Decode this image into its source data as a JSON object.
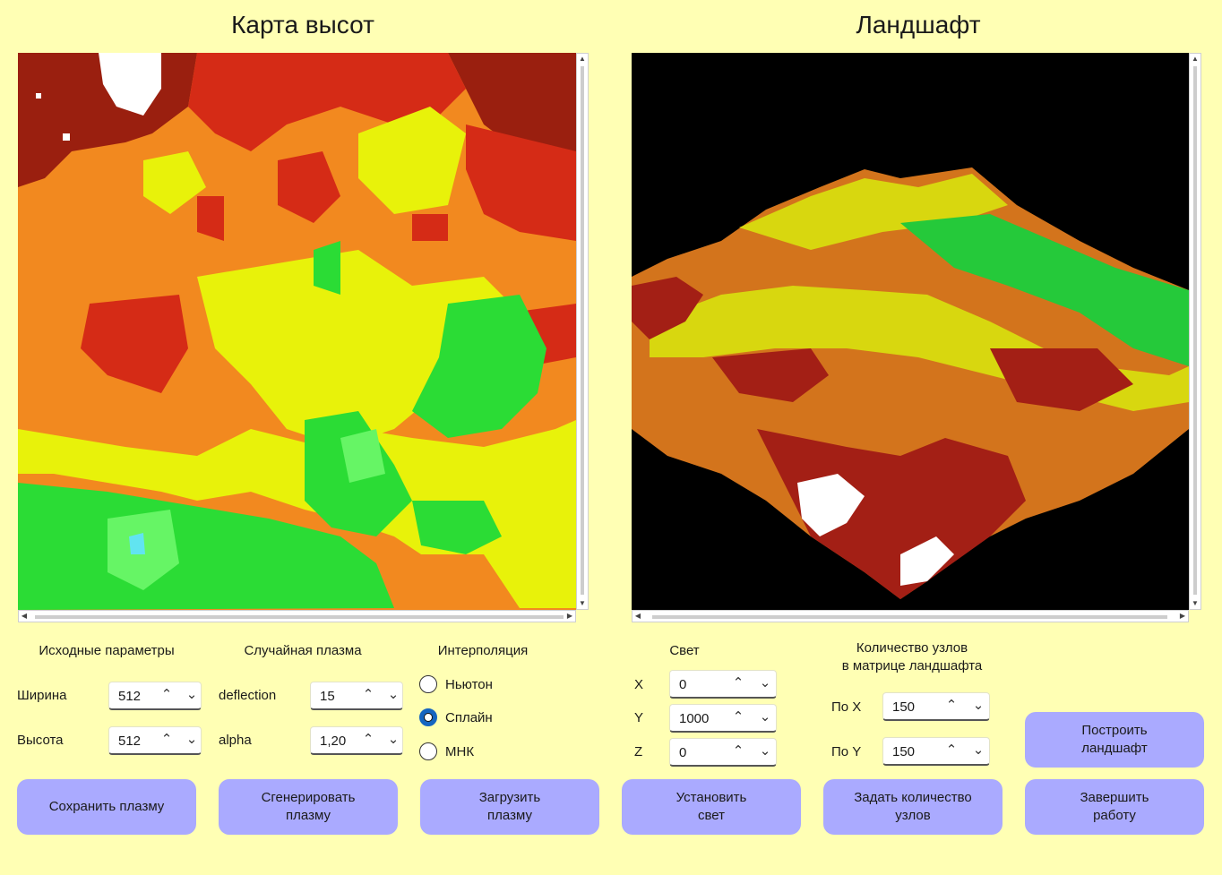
{
  "left_title": "Карта высот",
  "right_title": "Ландшафт",
  "heightmap": {
    "colors": [
      "#9a1f0f",
      "#d52b16",
      "#f2891f",
      "#e8f20a",
      "#2bdc35",
      "#66f565",
      "#61e4f0",
      "#ffffff"
    ]
  },
  "landscape": {
    "background": "#000000",
    "colors": [
      "#a31f15",
      "#d3741c",
      "#d8d70f",
      "#25c93a",
      "#ffffff"
    ]
  },
  "source_params": {
    "title": "Исходные параметры",
    "width_label": "Ширина",
    "width_value": "512",
    "height_label": "Высота",
    "height_value": "512"
  },
  "plasma": {
    "title": "Случайная плазма",
    "deflection_label": "deflection",
    "deflection_value": "15",
    "alpha_label": "alpha",
    "alpha_value": "1,20"
  },
  "interpolation": {
    "title": "Интерполяция",
    "options": [
      {
        "label": "Ньютон",
        "checked": false
      },
      {
        "label": "Сплайн",
        "checked": true
      },
      {
        "label": "МНК",
        "checked": false
      }
    ]
  },
  "light": {
    "title": "Свет",
    "x_label": "X",
    "x_value": "0",
    "y_label": "Y",
    "y_value": "1000",
    "z_label": "Z",
    "z_value": "0"
  },
  "nodes": {
    "title_line1": "Количество узлов",
    "title_line2": "в матрице ландшафта",
    "x_label": "По X",
    "x_value": "150",
    "y_label": "По Y",
    "y_value": "150"
  },
  "buttons": {
    "save_plasma": "Сохранить плазму",
    "generate_plasma_1": "Сгенерировать",
    "generate_plasma_2": "плазму",
    "load_plasma_1": "Загрузить",
    "load_plasma_2": "плазму",
    "set_light_1": "Установить",
    "set_light_2": "свет",
    "set_nodes_1": "Задать количество",
    "set_nodes_2": "узлов",
    "build_1": "Построить",
    "build_2": "ландшафт",
    "exit_1": "Завершить",
    "exit_2": "работу"
  },
  "icons": {
    "spin_up": "chevron-up-icon",
    "spin_down": "chevron-down-icon",
    "scroll_up": "▲",
    "scroll_down": "▼",
    "scroll_left": "◀",
    "scroll_right": "▶",
    "chevron_up": "⌃",
    "chevron_down": "⌄"
  }
}
